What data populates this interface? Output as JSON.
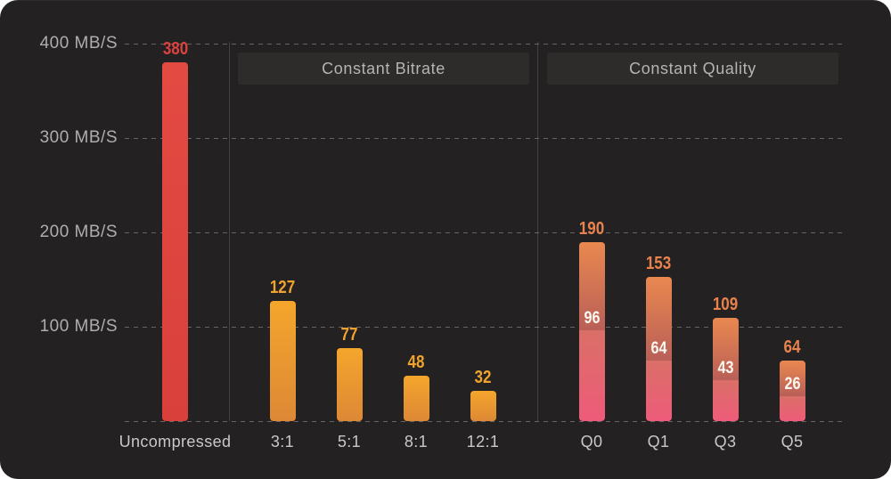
{
  "chart_data": {
    "type": "bar",
    "title": "",
    "unit": "MB/S",
    "xlabel": "",
    "ylabel": "MB/S",
    "ylim": [
      0,
      400
    ],
    "grid": "dashed-horizontal",
    "legend": "none",
    "y_ticks": [
      {
        "value": 400,
        "label": "400 MB/S"
      },
      {
        "value": 300,
        "label": "300 MB/S"
      },
      {
        "value": 200,
        "label": "200 MB/S"
      },
      {
        "value": 100,
        "label": "100 MB/S"
      },
      {
        "value": 0,
        "label": ""
      }
    ],
    "sections": [
      {
        "title": "",
        "style": "red",
        "bars": [
          {
            "label": "Uncompressed",
            "value": 380
          }
        ]
      },
      {
        "title": "Constant Bitrate",
        "style": "amber",
        "bars": [
          {
            "label": "3:1",
            "value": 127
          },
          {
            "label": "5:1",
            "value": 77
          },
          {
            "label": "8:1",
            "value": 48
          },
          {
            "label": "12:1",
            "value": 32
          }
        ]
      },
      {
        "title": "Constant Quality",
        "style": "dual",
        "bars": [
          {
            "label": "Q0",
            "value": 190,
            "inner_value": 96
          },
          {
            "label": "Q1",
            "value": 153,
            "inner_value": 64
          },
          {
            "label": "Q3",
            "value": 109,
            "inner_value": 43
          },
          {
            "label": "Q5",
            "value": 64,
            "inner_value": 26
          }
        ]
      }
    ]
  },
  "colors": {
    "card_background": "#242122",
    "grid_line": "#9e9b9b",
    "section_divider": "#4a4747",
    "header_background": "#2e2b2b",
    "header_text": "#b6b3b3",
    "y_label_text": "#b0adad",
    "x_label_text": "#cac7c7",
    "red_bar_top": "#e34a42",
    "red_bar_bottom": "#d9403c",
    "red_value_label": "#de423e",
    "amber_bar_top": "#f4a62c",
    "amber_bar_bottom": "#dd8836",
    "amber_value_label": "#f0a42e",
    "dual_upper_top": "#e9884f",
    "dual_upper_bottom": "#b95f58",
    "dual_lower_top": "#da6f67",
    "dual_lower_bottom": "#ee5b7a",
    "dual_value_label": "#e8834e",
    "dual_inner_label": "#fbf7f1"
  }
}
